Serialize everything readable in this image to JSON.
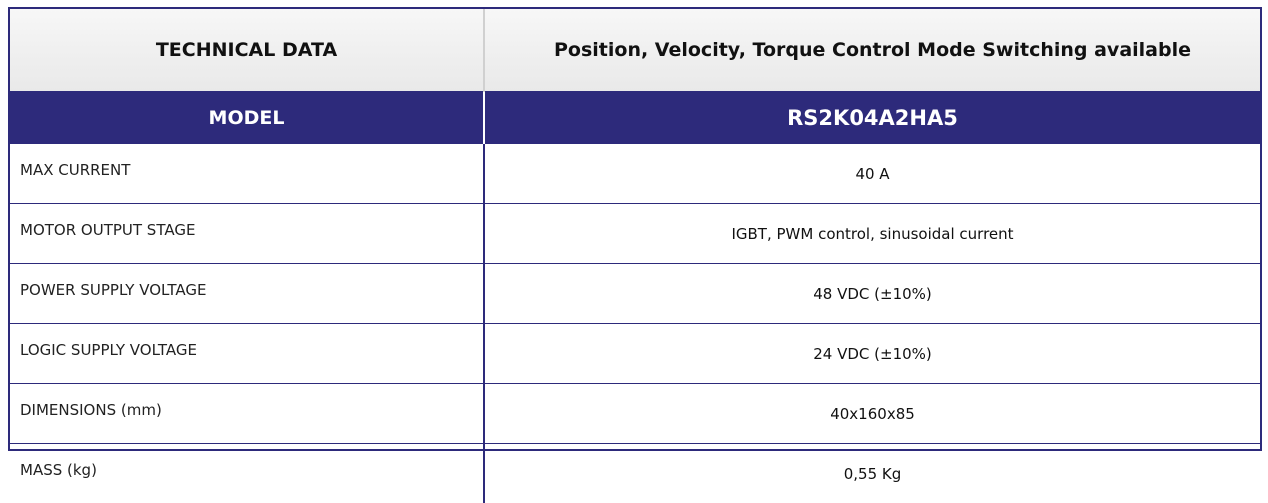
{
  "header": {
    "title": "TECHNICAL DATA",
    "subtitle": "Position, Velocity, Torque Control Mode Switching available"
  },
  "model": {
    "label": "MODEL",
    "value": "RS2K04A2HA5"
  },
  "table": {
    "rows": [
      [
        "MAX CURRENT",
        "40 A"
      ],
      [
        "MOTOR OUTPUT STAGE",
        "IGBT, PWM control, sinusoidal current"
      ],
      [
        "POWER SUPPLY VOLTAGE",
        "48 VDC (±10%)"
      ],
      [
        "LOGIC SUPPLY VOLTAGE",
        "24 VDC (±10%)"
      ],
      [
        "DIMENSIONS (mm)",
        "40x160x85"
      ],
      [
        "MASS (kg)",
        "0,55 Kg"
      ]
    ]
  }
}
